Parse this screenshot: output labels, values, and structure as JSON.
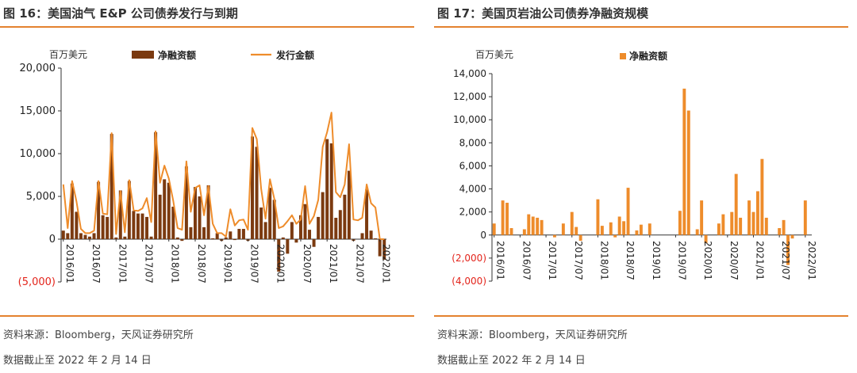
{
  "charts": [
    {
      "title": "图 16：美国油气 E&P 公司债券发行与到期",
      "source": "资料来源：Bloomberg，天风证券研究所",
      "date_note": "数据截止至 2022 年 2 月 14 日",
      "unit": "百万美元",
      "colors": {
        "bar": "#7b3a10",
        "line": "#ee8c2b",
        "negative": "#e3241b",
        "rule": "#e4822e"
      }
    },
    {
      "title": "图 17：美国页岩油公司债券净融资规模",
      "source": "资料来源：Bloomberg，天风证券研究所",
      "date_note": "数据截止至 2022 年 2 月 14 日",
      "unit": "百万美元",
      "colors": {
        "bar": "#ee8c2b",
        "negative": "#e3241b",
        "rule": "#e4822e"
      }
    }
  ],
  "chart_data": [
    {
      "type": "bar",
      "title": "图 16：美国油气 E&P 公司债券发行与到期",
      "ylabel": "百万美元",
      "ylim": [
        -5000,
        20000
      ],
      "yticks": [
        20000,
        15000,
        10000,
        5000,
        0,
        -5000
      ],
      "ytick_labels": [
        "20,000",
        "15,000",
        "10,000",
        "5,000",
        "0",
        "(5,000)"
      ],
      "xtick_labels": [
        "2016/01",
        "2016/07",
        "2017/01",
        "2017/07",
        "2018/01",
        "2018/07",
        "2019/01",
        "2019/07",
        "2020/01",
        "2020/07",
        "2021/01",
        "2021/07",
        "2022/01"
      ],
      "legend_position": "top",
      "x": [
        "2016/01",
        "2016/02",
        "2016/03",
        "2016/04",
        "2016/05",
        "2016/06",
        "2016/07",
        "2016/08",
        "2016/09",
        "2016/10",
        "2016/11",
        "2016/12",
        "2017/01",
        "2017/02",
        "2017/03",
        "2017/04",
        "2017/05",
        "2017/06",
        "2017/07",
        "2017/08",
        "2017/09",
        "2017/10",
        "2017/11",
        "2017/12",
        "2018/01",
        "2018/02",
        "2018/03",
        "2018/04",
        "2018/05",
        "2018/06",
        "2018/07",
        "2018/08",
        "2018/09",
        "2018/10",
        "2018/11",
        "2018/12",
        "2019/01",
        "2019/02",
        "2019/03",
        "2019/04",
        "2019/05",
        "2019/06",
        "2019/07",
        "2019/08",
        "2019/09",
        "2019/10",
        "2019/11",
        "2019/12",
        "2020/01",
        "2020/02",
        "2020/03",
        "2020/04",
        "2020/05",
        "2020/06",
        "2020/07",
        "2020/08",
        "2020/09",
        "2020/10",
        "2020/11",
        "2020/12",
        "2021/01",
        "2021/02",
        "2021/03",
        "2021/04",
        "2021/05",
        "2021/06",
        "2021/07",
        "2021/08",
        "2021/09",
        "2021/10",
        "2021/11",
        "2021/12",
        "2022/01",
        "2022/02"
      ],
      "series": [
        {
          "name": "净融资额",
          "kind": "bar",
          "values": [
            1000,
            700,
            6500,
            3200,
            700,
            500,
            300,
            700,
            6700,
            2800,
            2600,
            12300,
            200,
            5700,
            300,
            6800,
            3300,
            3000,
            3000,
            2600,
            300,
            12500,
            5200,
            7000,
            6600,
            3800,
            200,
            -200,
            8500,
            1400,
            6100,
            5000,
            1400,
            6300,
            100,
            700,
            -200,
            200,
            900,
            -100,
            1200,
            1200,
            -200,
            12000,
            10800,
            3700,
            2000,
            6000,
            4600,
            -3800,
            200,
            -1700,
            2000,
            -400,
            2800,
            4100,
            1100,
            -900,
            2600,
            5500,
            11700,
            11200,
            2500,
            3400,
            5200,
            8000,
            -200,
            0,
            700,
            5800,
            1000,
            100,
            -2000,
            -2400
          ]
        },
        {
          "name": "发行金额",
          "kind": "line",
          "values": [
            6400,
            1300,
            6800,
            4400,
            1200,
            700,
            700,
            1000,
            6800,
            3000,
            2900,
            12400,
            600,
            5600,
            800,
            6900,
            3400,
            3300,
            3600,
            4800,
            2000,
            12600,
            6600,
            8600,
            7100,
            4500,
            1300,
            1100,
            9100,
            3200,
            6000,
            6300,
            2800,
            6200,
            1800,
            700,
            700,
            300,
            3500,
            1600,
            2200,
            2300,
            1100,
            13000,
            11700,
            5900,
            2400,
            7000,
            4700,
            1300,
            1500,
            2100,
            2800,
            1800,
            2300,
            6200,
            1800,
            2700,
            4600,
            10800,
            12500,
            14800,
            5500,
            4900,
            6400,
            11100,
            2300,
            2200,
            2500,
            6400,
            4200,
            3700,
            0,
            0
          ]
        }
      ]
    },
    {
      "type": "bar",
      "title": "图 17：美国页岩油公司债券净融资规模",
      "ylabel": "百万美元",
      "ylim": [
        -4000,
        14000
      ],
      "yticks": [
        14000,
        12000,
        10000,
        8000,
        6000,
        4000,
        2000,
        0,
        -2000,
        -4000
      ],
      "ytick_labels": [
        "14,000",
        "12,000",
        "10,000",
        "8,000",
        "6,000",
        "4,000",
        "2,000",
        "0",
        "(2,000)",
        "(4,000)"
      ],
      "xtick_labels": [
        "2016/01",
        "2016/07",
        "2017/01",
        "2017/07",
        "2018/01",
        "2018/07",
        "2019/01",
        "2019/07",
        "2020/01",
        "2020/07",
        "2021/01",
        "2021/07",
        "2022/01"
      ],
      "legend_position": "top",
      "x": [
        "2016/01",
        "2016/02",
        "2016/03",
        "2016/04",
        "2016/05",
        "2016/06",
        "2016/07",
        "2016/08",
        "2016/09",
        "2016/10",
        "2016/11",
        "2016/12",
        "2017/01",
        "2017/02",
        "2017/03",
        "2017/04",
        "2017/05",
        "2017/06",
        "2017/07",
        "2017/08",
        "2017/09",
        "2017/10",
        "2017/11",
        "2017/12",
        "2018/01",
        "2018/02",
        "2018/03",
        "2018/04",
        "2018/05",
        "2018/06",
        "2018/07",
        "2018/08",
        "2018/09",
        "2018/10",
        "2018/11",
        "2018/12",
        "2019/01",
        "2019/02",
        "2019/03",
        "2019/04",
        "2019/05",
        "2019/06",
        "2019/07",
        "2019/08",
        "2019/09",
        "2019/10",
        "2019/11",
        "2019/12",
        "2020/01",
        "2020/02",
        "2020/03",
        "2020/04",
        "2020/05",
        "2020/06",
        "2020/07",
        "2020/08",
        "2020/09",
        "2020/10",
        "2020/11",
        "2020/12",
        "2021/01",
        "2021/02",
        "2021/03",
        "2021/04",
        "2021/05",
        "2021/06",
        "2021/07",
        "2021/08",
        "2021/09",
        "2021/10",
        "2021/11",
        "2021/12",
        "2022/01",
        "2022/02"
      ],
      "series": [
        {
          "name": "净融资额",
          "kind": "bar",
          "values": [
            1000,
            0,
            3000,
            2800,
            600,
            0,
            0,
            500,
            1800,
            1600,
            1500,
            1300,
            0,
            0,
            -200,
            0,
            1000,
            0,
            2000,
            700,
            -500,
            0,
            0,
            0,
            3100,
            800,
            0,
            1100,
            -200,
            1600,
            1200,
            4100,
            0,
            400,
            900,
            0,
            1000,
            0,
            0,
            0,
            0,
            0,
            0,
            2100,
            12700,
            10800,
            0,
            500,
            3000,
            -700,
            0,
            0,
            1000,
            1800,
            0,
            2000,
            5300,
            1500,
            0,
            3000,
            2000,
            3800,
            6600,
            1500,
            0,
            0,
            600,
            1300,
            -2600,
            -300,
            0,
            0,
            3000,
            0
          ]
        }
      ]
    }
  ]
}
